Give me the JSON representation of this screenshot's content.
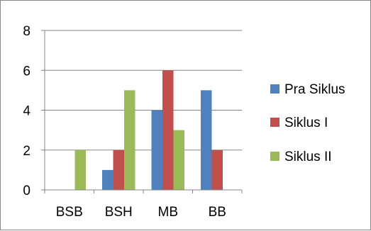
{
  "chart_data": {
    "type": "bar",
    "categories": [
      "BSB",
      "BSH",
      "MB",
      "BB"
    ],
    "series": [
      {
        "name": "Pra Siklus",
        "color": "#4F81BD",
        "values": [
          0,
          1,
          4,
          5
        ]
      },
      {
        "name": "Siklus I",
        "color": "#C0504D",
        "values": [
          0,
          2,
          6,
          2
        ]
      },
      {
        "name": "Siklus II",
        "color": "#9BBB59",
        "values": [
          2,
          5,
          3,
          0
        ]
      }
    ],
    "y_ticks": [
      "0",
      "2",
      "4",
      "6",
      "8"
    ],
    "ylim": [
      0,
      8
    ],
    "grid": true,
    "legend_position": "right"
  }
}
